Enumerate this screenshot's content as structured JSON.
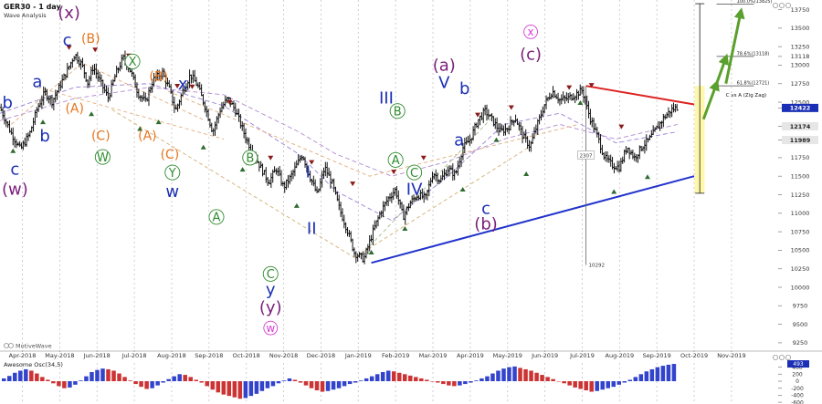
{
  "header": {
    "title": "GER30 - 1 day",
    "subtitle": "Wave Analysis"
  },
  "branding": {
    "logo_text": "MotiveWave"
  },
  "colors": {
    "blue": "#1a2fb5",
    "orange": "#e6741e",
    "green": "#2e8b2e",
    "purple": "#7a1f7a",
    "magenta": "#d63cd6",
    "red": "#dd2222",
    "line_blue": "#2233cc",
    "up_bar": "#3344cc",
    "down_bar": "#cc3333",
    "arrow_green": "#5aa02c",
    "yellow": "#fff7a0"
  },
  "chart_data": {
    "type": "bar",
    "title": "GER30 - 1 day",
    "x_ticks": [
      "Apr-2018",
      "May-2018",
      "Jun-2018",
      "Jul-2018",
      "Aug-2018",
      "Sep-2018",
      "Oct-2018",
      "Nov-2018",
      "Dec-2018",
      "Jan-2019",
      "Feb-2019",
      "Mar-2019",
      "Apr-2019",
      "May-2019",
      "Jun-2019",
      "Jul-2019",
      "Aug-2019",
      "Sep-2019",
      "Oct-2019",
      "Nov-2019"
    ],
    "x_tick_pos": [
      0.6,
      1.6,
      2.6,
      3.6,
      4.6,
      5.6,
      6.6,
      7.6,
      8.6,
      9.6,
      10.6,
      11.6,
      12.6,
      13.6,
      14.6,
      15.6,
      16.6,
      17.6,
      18.6,
      19.6
    ],
    "y_ticks": [
      9250,
      9500,
      9750,
      10000,
      10250,
      10500,
      10750,
      11000,
      11250,
      11500,
      11750,
      11989,
      12174,
      12422,
      12500,
      12750,
      13000,
      13118,
      13250,
      13500,
      13750
    ],
    "ylim": [
      9150,
      13880
    ],
    "xlim": [
      0,
      20.85
    ],
    "price_labels": [
      {
        "text": "12422",
        "value": 12422,
        "color": "#1a2fb5"
      },
      {
        "text": "12174",
        "value": 12174,
        "color": "#e6e6e6"
      },
      {
        "text": "11989",
        "value": 11989,
        "color": "#e6e6e6"
      }
    ],
    "fib_levels": [
      {
        "label": "100.0%(13825)",
        "value": 13825,
        "x": 19.2,
        "x2": 20.2
      },
      {
        "label": "78.6%(13118)",
        "value": 13118,
        "x": 19.2,
        "x2": 20.2
      },
      {
        "label": "61.8%(12721)",
        "value": 12721,
        "x": 19.2,
        "x2": 20.2
      }
    ],
    "annotation": {
      "text": "C vs A (Zig Zag)",
      "x": 19.45,
      "value": 12600
    },
    "path_points": [
      [
        0.0,
        12430
      ],
      [
        0.3,
        12080
      ],
      [
        0.55,
        11860
      ],
      [
        0.8,
        12080
      ],
      [
        1.0,
        12420
      ],
      [
        1.2,
        12630
      ],
      [
        1.4,
        12510
      ],
      [
        1.65,
        12770
      ],
      [
        1.85,
        12980
      ],
      [
        2.0,
        13150
      ],
      [
        2.2,
        13000
      ],
      [
        2.35,
        12760
      ],
      [
        2.5,
        12980
      ],
      [
        2.7,
        12760
      ],
      [
        2.9,
        12560
      ],
      [
        3.1,
        12880
      ],
      [
        3.3,
        13100
      ],
      [
        3.5,
        12920
      ],
      [
        3.7,
        12620
      ],
      [
        3.9,
        12500
      ],
      [
        4.1,
        12800
      ],
      [
        4.35,
        12900
      ],
      [
        4.55,
        12660
      ],
      [
        4.7,
        12380
      ],
      [
        4.9,
        12650
      ],
      [
        5.1,
        12870
      ],
      [
        5.3,
        12720
      ],
      [
        5.5,
        12430
      ],
      [
        5.7,
        12100
      ],
      [
        5.9,
        12400
      ],
      [
        6.1,
        12550
      ],
      [
        6.3,
        12400
      ],
      [
        6.6,
        12000
      ],
      [
        6.9,
        11700
      ],
      [
        7.2,
        11420
      ],
      [
        7.4,
        11600
      ],
      [
        7.6,
        11350
      ],
      [
        7.8,
        11500
      ],
      [
        8.1,
        11800
      ],
      [
        8.3,
        11500
      ],
      [
        8.5,
        11250
      ],
      [
        8.7,
        11620
      ],
      [
        8.9,
        11400
      ],
      [
        9.1,
        11050
      ],
      [
        9.3,
        10780
      ],
      [
        9.5,
        10460
      ],
      [
        9.75,
        10380
      ],
      [
        10.0,
        10760
      ],
      [
        10.2,
        11020
      ],
      [
        10.4,
        11200
      ],
      [
        10.6,
        11320
      ],
      [
        10.8,
        10950
      ],
      [
        11.0,
        11150
      ],
      [
        11.2,
        11250
      ],
      [
        11.4,
        11200
      ],
      [
        11.6,
        11550
      ],
      [
        11.8,
        11440
      ],
      [
        12.0,
        11600
      ],
      [
        12.2,
        11520
      ],
      [
        12.4,
        11880
      ],
      [
        12.6,
        12000
      ],
      [
        12.8,
        12250
      ],
      [
        13.0,
        12380
      ],
      [
        13.2,
        12250
      ],
      [
        13.4,
        12100
      ],
      [
        13.6,
        12150
      ],
      [
        13.8,
        12300
      ],
      [
        14.0,
        12050
      ],
      [
        14.2,
        11900
      ],
      [
        14.4,
        12200
      ],
      [
        14.6,
        12480
      ],
      [
        14.8,
        12650
      ],
      [
        15.0,
        12530
      ],
      [
        15.2,
        12550
      ],
      [
        15.4,
        12600
      ],
      [
        15.6,
        12660
      ],
      [
        15.8,
        12300
      ],
      [
        16.0,
        12050
      ],
      [
        16.2,
        11750
      ],
      [
        16.4,
        11650
      ],
      [
        16.6,
        11620
      ],
      [
        16.8,
        11900
      ],
      [
        17.0,
        11750
      ],
      [
        17.2,
        11900
      ],
      [
        17.4,
        12000
      ],
      [
        17.6,
        12150
      ],
      [
        17.8,
        12300
      ],
      [
        18.0,
        12400
      ],
      [
        18.15,
        12430
      ]
    ],
    "ma_lines": [
      {
        "name": "fast",
        "color": "#9b80d6",
        "points": [
          [
            0.0,
            12350
          ],
          [
            2.0,
            12700
          ],
          [
            4.0,
            12750
          ],
          [
            6.0,
            12450
          ],
          [
            8.0,
            11800
          ],
          [
            9.0,
            11300
          ],
          [
            10.5,
            10900
          ],
          [
            12.0,
            11500
          ],
          [
            13.5,
            12200
          ],
          [
            15.0,
            12350
          ],
          [
            16.5,
            11950
          ],
          [
            18.15,
            12100
          ]
        ]
      },
      {
        "name": "slow",
        "color": "#b08ad0",
        "points": [
          [
            0.0,
            12250
          ],
          [
            2.0,
            12550
          ],
          [
            4.0,
            12700
          ],
          [
            6.0,
            12600
          ],
          [
            8.0,
            12100
          ],
          [
            9.0,
            11800
          ],
          [
            10.5,
            11500
          ],
          [
            12.0,
            11700
          ],
          [
            13.5,
            12000
          ],
          [
            15.0,
            12200
          ],
          [
            16.5,
            12000
          ],
          [
            18.15,
            12200
          ]
        ]
      }
    ],
    "dashed_lines": [
      {
        "color": "#e2ab7a",
        "points": [
          [
            0.3,
            12200
          ],
          [
            2.2,
            13030
          ],
          [
            5.5,
            12250
          ]
        ]
      },
      {
        "color": "#e2ab7a",
        "points": [
          [
            1.0,
            12700
          ],
          [
            6.0,
            12000
          ]
        ]
      },
      {
        "color": "#d0b070",
        "points": [
          [
            3.0,
            12400
          ],
          [
            9.5,
            10400
          ],
          [
            14.2,
            11900
          ]
        ]
      },
      {
        "color": "#a0c08a",
        "points": [
          [
            9.8,
            10500
          ],
          [
            13.2,
            12300
          ]
        ]
      },
      {
        "color": "#e2ab7a",
        "points": [
          [
            4.5,
            12650
          ],
          [
            9.9,
            11500
          ],
          [
            15.5,
            12200
          ]
        ]
      }
    ],
    "triangles_up": [
      [
        0.35,
        11850
      ],
      [
        1.15,
        12240
      ],
      [
        2.45,
        12350
      ],
      [
        3.75,
        12150
      ],
      [
        4.25,
        12240
      ],
      [
        5.45,
        11900
      ],
      [
        6.5,
        11600
      ],
      [
        7.95,
        11110
      ],
      [
        9.95,
        10480
      ],
      [
        10.85,
        10800
      ],
      [
        12.4,
        11330
      ],
      [
        13.3,
        12000
      ],
      [
        14.1,
        11540
      ],
      [
        15.55,
        12500
      ],
      [
        16.45,
        11300
      ],
      [
        17.35,
        11500
      ]
    ],
    "triangles_down": [
      [
        1.85,
        13230
      ],
      [
        2.55,
        13200
      ],
      [
        3.45,
        13120
      ],
      [
        4.75,
        12710
      ],
      [
        5.15,
        12700
      ],
      [
        6.15,
        12490
      ],
      [
        7.25,
        11740
      ],
      [
        8.35,
        11680
      ],
      [
        9.45,
        11390
      ],
      [
        10.55,
        11550
      ],
      [
        11.35,
        11740
      ],
      [
        12.8,
        12320
      ],
      [
        13.7,
        12420
      ],
      [
        15.25,
        12690
      ],
      [
        15.85,
        12720
      ],
      [
        16.65,
        12160
      ]
    ],
    "trend_red": [
      [
        15.7,
        12720
      ],
      [
        18.6,
        12470
      ]
    ],
    "trend_blue": [
      [
        9.95,
        10330
      ],
      [
        18.6,
        11500
      ]
    ],
    "measure_line": {
      "x": 15.7,
      "from": 12720,
      "to": 10300,
      "label_top": "2307",
      "label_bottom": "10292",
      "label_top_value": 11780,
      "label_bottom_value": 10300
    },
    "yellow_box": {
      "x1": 18.62,
      "x2": 18.88,
      "from": 11270,
      "to": 12720
    },
    "target_bracket": {
      "x": 18.75,
      "from": 11270,
      "to": 13830
    },
    "green_arrows": [
      [
        [
          18.85,
          12270
        ],
        [
          19.2,
          12750
        ]
      ],
      [
        [
          19.2,
          12750
        ],
        [
          19.45,
          13100
        ]
      ],
      [
        [
          19.45,
          12750
        ],
        [
          19.85,
          13720
        ]
      ]
    ],
    "wave_labels": [
      {
        "text": "b",
        "x": 0.2,
        "value": 12500,
        "color": "#1a2fb5",
        "style": "plain",
        "size": 18
      },
      {
        "text": "c",
        "x": 0.4,
        "value": 11600,
        "color": "#1a2fb5",
        "style": "plain",
        "size": 18
      },
      {
        "text": "(w)",
        "x": 0.4,
        "value": 11330,
        "color": "#7a1f7a",
        "style": "plain",
        "size": 18
      },
      {
        "text": "a",
        "x": 1.0,
        "value": 12780,
        "color": "#1a2fb5",
        "style": "plain",
        "size": 18
      },
      {
        "text": "b",
        "x": 1.2,
        "value": 12050,
        "color": "#1a2fb5",
        "style": "plain",
        "size": 18
      },
      {
        "text": "c",
        "x": 1.8,
        "value": 13340,
        "color": "#1a2fb5",
        "style": "plain",
        "size": 18
      },
      {
        "text": "(x)",
        "x": 1.85,
        "value": 13710,
        "color": "#7a1f7a",
        "style": "plain",
        "size": 18
      },
      {
        "text": "(A)",
        "x": 2.0,
        "value": 12420,
        "color": "#e6741e",
        "style": "plain",
        "size": 14
      },
      {
        "text": "(B)",
        "x": 2.43,
        "value": 13360,
        "color": "#e6741e",
        "style": "plain",
        "size": 14
      },
      {
        "text": "(C)",
        "x": 2.7,
        "value": 12050,
        "color": "#e6741e",
        "style": "plain",
        "size": 14
      },
      {
        "text": "W",
        "x": 2.75,
        "value": 11760,
        "color": "#2e8b2e",
        "style": "circle",
        "size": 13
      },
      {
        "text": "X",
        "x": 3.55,
        "value": 13050,
        "color": "#2e8b2e",
        "style": "circle",
        "size": 13
      },
      {
        "text": "(B)",
        "x": 4.25,
        "value": 12850,
        "color": "#e6741e",
        "style": "plain",
        "size": 14
      },
      {
        "text": "(A)",
        "x": 3.95,
        "value": 12050,
        "color": "#e6741e",
        "style": "plain",
        "size": 14
      },
      {
        "text": "(C)",
        "x": 4.55,
        "value": 11800,
        "color": "#e6741e",
        "style": "plain",
        "size": 14
      },
      {
        "text": "Y",
        "x": 4.62,
        "value": 11550,
        "color": "#2e8b2e",
        "style": "circle",
        "size": 13
      },
      {
        "text": "x",
        "x": 4.9,
        "value": 12750,
        "color": "#1a2fb5",
        "style": "plain",
        "size": 18
      },
      {
        "text": "w",
        "x": 4.62,
        "value": 11300,
        "color": "#1a2fb5",
        "style": "plain",
        "size": 18
      },
      {
        "text": "A",
        "x": 5.8,
        "value": 10950,
        "color": "#2e8b2e",
        "style": "circle",
        "size": 13
      },
      {
        "text": "B",
        "x": 6.7,
        "value": 11750,
        "color": "#2e8b2e",
        "style": "circle",
        "size": 13
      },
      {
        "text": "C",
        "x": 7.25,
        "value": 10180,
        "color": "#2e8b2e",
        "style": "circle",
        "size": 13
      },
      {
        "text": "y",
        "x": 7.25,
        "value": 9970,
        "color": "#1a2fb5",
        "style": "plain",
        "size": 18
      },
      {
        "text": "(y)",
        "x": 7.25,
        "value": 9730,
        "color": "#7a1f7a",
        "style": "plain",
        "size": 18
      },
      {
        "text": "w",
        "x": 7.25,
        "value": 9450,
        "color": "#d63cd6",
        "style": "circle",
        "size": 12
      },
      {
        "text": "I",
        "x": 8.25,
        "value": 11560,
        "color": "#1a2fb5",
        "style": "plain",
        "size": 18
      },
      {
        "text": "II",
        "x": 8.35,
        "value": 10800,
        "color": "#1a2fb5",
        "style": "plain",
        "size": 18
      },
      {
        "text": "III",
        "x": 10.35,
        "value": 12560,
        "color": "#1a2fb5",
        "style": "plain",
        "size": 18
      },
      {
        "text": "B",
        "x": 10.65,
        "value": 12380,
        "color": "#2e8b2e",
        "style": "circle",
        "size": 13
      },
      {
        "text": "A",
        "x": 10.6,
        "value": 11720,
        "color": "#2e8b2e",
        "style": "circle",
        "size": 13
      },
      {
        "text": "C",
        "x": 11.1,
        "value": 11550,
        "color": "#2e8b2e",
        "style": "circle",
        "size": 13
      },
      {
        "text": "IV",
        "x": 11.1,
        "value": 11330,
        "color": "#1a2fb5",
        "style": "plain",
        "size": 18
      },
      {
        "text": "(a)",
        "x": 11.9,
        "value": 13000,
        "color": "#7a1f7a",
        "style": "plain",
        "size": 18
      },
      {
        "text": "V",
        "x": 11.9,
        "value": 12770,
        "color": "#1a2fb5",
        "style": "plain",
        "size": 18
      },
      {
        "text": "b",
        "x": 12.45,
        "value": 12690,
        "color": "#1a2fb5",
        "style": "plain",
        "size": 18
      },
      {
        "text": "a",
        "x": 12.3,
        "value": 11990,
        "color": "#1a2fb5",
        "style": "plain",
        "size": 18
      },
      {
        "text": "c",
        "x": 13.02,
        "value": 11070,
        "color": "#1a2fb5",
        "style": "plain",
        "size": 18
      },
      {
        "text": "(b)",
        "x": 13.02,
        "value": 10860,
        "color": "#7a1f7a",
        "style": "plain",
        "size": 18
      },
      {
        "text": "x",
        "x": 14.22,
        "value": 13450,
        "color": "#d63cd6",
        "style": "circle",
        "size": 12
      },
      {
        "text": "(c)",
        "x": 14.22,
        "value": 13150,
        "color": "#7a1f7a",
        "style": "plain",
        "size": 18
      }
    ]
  },
  "oscillator": {
    "title": "Awesome Osc(34,5)",
    "y_ticks": [
      "400",
      "200",
      "0",
      "-200",
      "-400",
      "-600"
    ],
    "y_values": [
      400,
      200,
      0,
      -200,
      -400,
      -600
    ],
    "ylim": [
      -650,
      520
    ],
    "value_label": "493",
    "value": 493,
    "series": [
      80,
      150,
      240,
      300,
      340,
      300,
      220,
      120,
      40,
      -60,
      -140,
      -200,
      -180,
      -100,
      20,
      140,
      260,
      320,
      360,
      340,
      300,
      220,
      120,
      20,
      -80,
      -160,
      -220,
      -200,
      -120,
      -40,
      60,
      140,
      200,
      180,
      120,
      40,
      -40,
      -140,
      -240,
      -320,
      -380,
      -420,
      -460,
      -500,
      -480,
      -420,
      -360,
      -280,
      -200,
      -140,
      -60,
      20,
      80,
      40,
      -40,
      -120,
      -200,
      -260,
      -300,
      -280,
      -240,
      -200,
      -140,
      -80,
      -40,
      20,
      80,
      140,
      200,
      260,
      300,
      280,
      240,
      200,
      160,
      120,
      80,
      40,
      0,
      -40,
      -80,
      -120,
      -140,
      -120,
      -80,
      -40,
      20,
      80,
      140,
      220,
      300,
      360,
      400,
      420,
      380,
      340,
      300,
      240,
      180,
      120,
      60,
      0,
      -60,
      -120,
      -180,
      -220,
      -260,
      -300,
      -280,
      -240,
      -200,
      -160,
      -100,
      -40,
      40,
      120,
      200,
      280,
      340,
      400,
      440,
      470,
      493
    ]
  }
}
